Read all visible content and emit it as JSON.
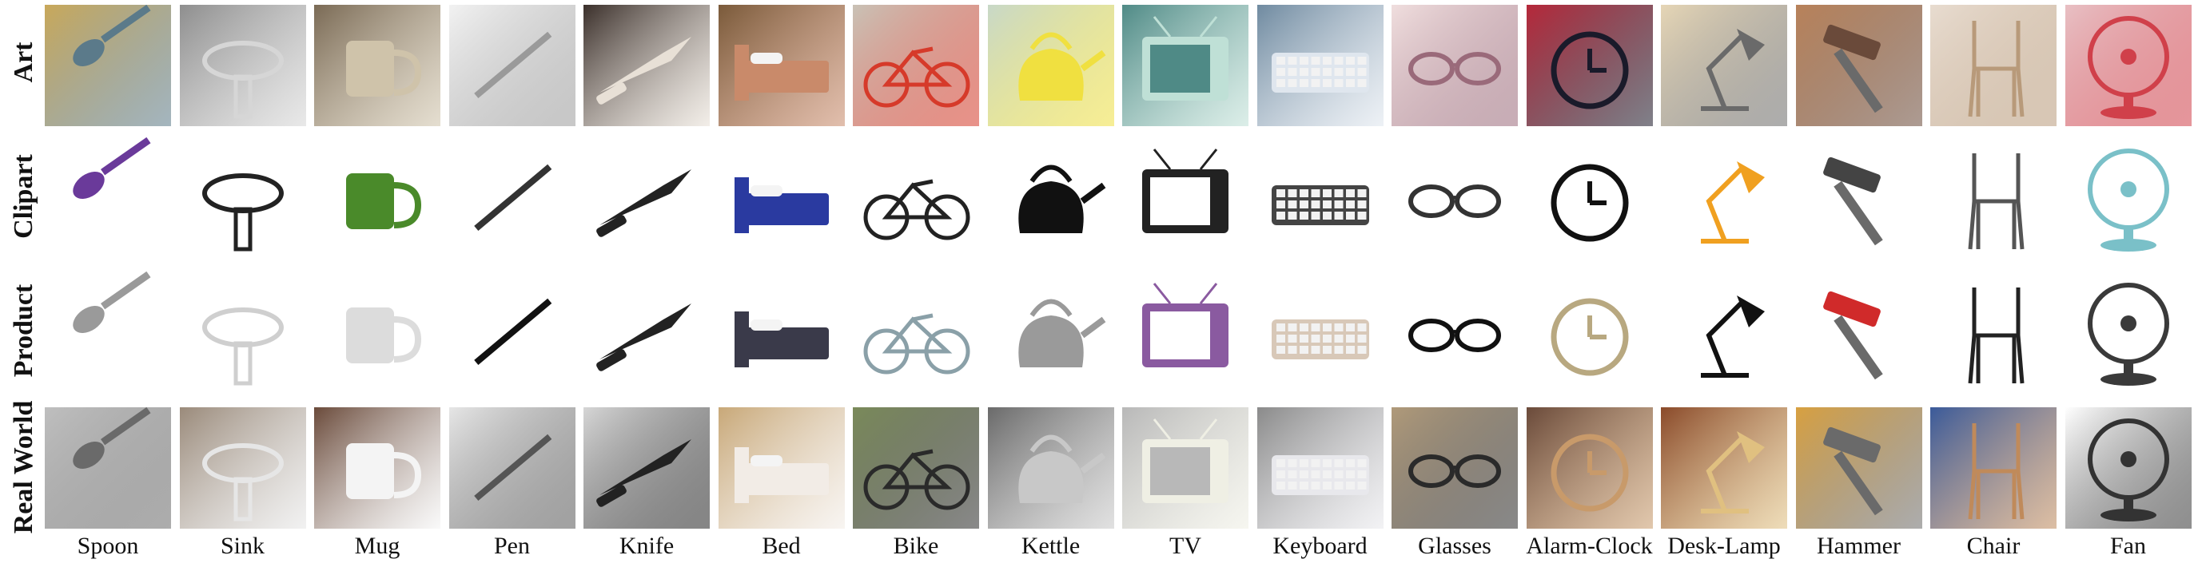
{
  "rows": [
    {
      "key": "art",
      "label": "Art"
    },
    {
      "key": "clipart",
      "label": "Clipart"
    },
    {
      "key": "product",
      "label": "Product"
    },
    {
      "key": "real",
      "label": "Real World"
    }
  ],
  "categories": [
    {
      "key": "spoon",
      "label": "Spoon"
    },
    {
      "key": "sink",
      "label": "Sink"
    },
    {
      "key": "mug",
      "label": "Mug"
    },
    {
      "key": "pen",
      "label": "Pen"
    },
    {
      "key": "knife",
      "label": "Knife"
    },
    {
      "key": "bed",
      "label": "Bed"
    },
    {
      "key": "bike",
      "label": "Bike"
    },
    {
      "key": "kettle",
      "label": "Kettle"
    },
    {
      "key": "tv",
      "label": "TV"
    },
    {
      "key": "keyboard",
      "label": "Keyboard"
    },
    {
      "key": "glasses",
      "label": "Glasses"
    },
    {
      "key": "alarm-clock",
      "label": "Alarm-Clock"
    },
    {
      "key": "desk-lamp",
      "label": "Desk-Lamp"
    },
    {
      "key": "hammer",
      "label": "Hammer"
    },
    {
      "key": "chair",
      "label": "Chair"
    },
    {
      "key": "fan",
      "label": "Fan"
    }
  ],
  "tile_colors": {
    "art": [
      [
        "#c9a85a",
        "#5b7a8a"
      ],
      [
        "#8e8e8e",
        "#d6d6d6"
      ],
      [
        "#7a6a55",
        "#cfc3aa"
      ],
      [
        "#f2f2f2",
        "#9a9a9a"
      ],
      [
        "#3a2f2a",
        "#e8e0d6"
      ],
      [
        "#7a5a3a",
        "#c98a6a"
      ],
      [
        "#c9c2b6",
        "#d63a2a"
      ],
      [
        "#c8d8c8",
        "#f0e040"
      ],
      [
        "#4f8a86",
        "#bfe0d6"
      ],
      [
        "#6f8aa0",
        "#dfe6ee"
      ],
      [
        "#f0dede",
        "#9a6a7a"
      ],
      [
        "#b6283a",
        "#1a1a2a"
      ],
      [
        "#e6d6b6",
        "#6a6a6a"
      ],
      [
        "#b8825a",
        "#6a4a3a"
      ],
      [
        "#e8dcd0",
        "#b89a7a"
      ],
      [
        "#e8c0c4",
        "#d0404a"
      ]
    ],
    "clipart": [
      [
        "#ffffff",
        "#6a3a9a"
      ],
      [
        "#ffffff",
        "#222222"
      ],
      [
        "#ffffff",
        "#4a8a2a"
      ],
      [
        "#ffffff",
        "#333333"
      ],
      [
        "#ffffff",
        "#222222"
      ],
      [
        "#ffffff",
        "#2a3aa0"
      ],
      [
        "#ffffff",
        "#222222"
      ],
      [
        "#ffffff",
        "#111111"
      ],
      [
        "#ffffff",
        "#222222"
      ],
      [
        "#ffffff",
        "#444444"
      ],
      [
        "#ffffff",
        "#333333"
      ],
      [
        "#ffffff",
        "#111111"
      ],
      [
        "#ffffff",
        "#f0a020"
      ],
      [
        "#ffffff",
        "#444444"
      ],
      [
        "#ffffff",
        "#555555"
      ],
      [
        "#ffffff",
        "#7ac0c8"
      ]
    ],
    "product": [
      [
        "#ffffff",
        "#9a9a9a"
      ],
      [
        "#ffffff",
        "#cfcfcf"
      ],
      [
        "#ffffff",
        "#dcdcdc"
      ],
      [
        "#ffffff",
        "#111111"
      ],
      [
        "#ffffff",
        "#222222"
      ],
      [
        "#ffffff",
        "#3a3a4a"
      ],
      [
        "#ffffff",
        "#8aa0a8"
      ],
      [
        "#ffffff",
        "#9a9a9a"
      ],
      [
        "#ffffff",
        "#8a5aa0"
      ],
      [
        "#ffffff",
        "#d8c8b8"
      ],
      [
        "#ffffff",
        "#111111"
      ],
      [
        "#ffffff",
        "#b8a880"
      ],
      [
        "#ffffff",
        "#111111"
      ],
      [
        "#ffffff",
        "#d02a2a"
      ],
      [
        "#ffffff",
        "#222222"
      ],
      [
        "#ffffff",
        "#3a3a3a"
      ]
    ],
    "real": [
      [
        "#bfbfbf",
        "#6a6a6a"
      ],
      [
        "#9a8a7a",
        "#e6e6e6"
      ],
      [
        "#6a4a3a",
        "#f4f4f4"
      ],
      [
        "#e6e6e6",
        "#555555"
      ],
      [
        "#d6d6d6",
        "#222222"
      ],
      [
        "#c8a878",
        "#f2ece6"
      ],
      [
        "#7a8a5a",
        "#2a2a2a"
      ],
      [
        "#6a6a6a",
        "#c8c8c8"
      ],
      [
        "#b8b8b8",
        "#efefe4"
      ],
      [
        "#8a8a8a",
        "#e8e8ec"
      ],
      [
        "#b09a7a",
        "#2a2a2a"
      ],
      [
        "#6a4a3a",
        "#c89a6a"
      ],
      [
        "#8a4a2a",
        "#e0c080"
      ],
      [
        "#d8a040",
        "#6a6a6a"
      ],
      [
        "#3a5a9a",
        "#c08a5a"
      ],
      [
        "#ffffff",
        "#333333"
      ]
    ]
  }
}
